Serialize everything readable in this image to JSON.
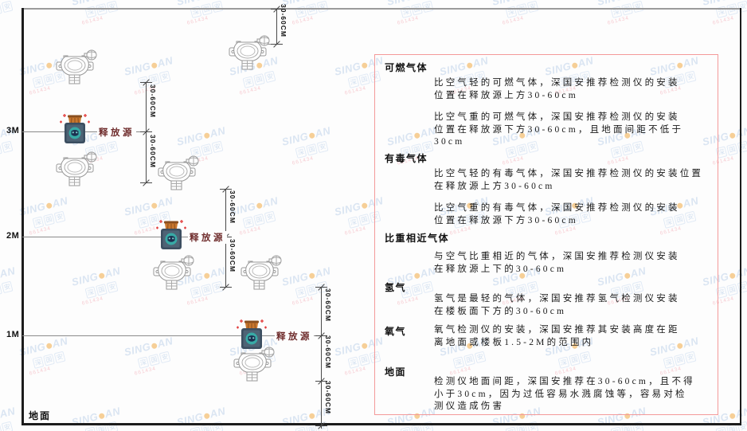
{
  "diagram": {
    "axis_levels": [
      "3M",
      "2M",
      "1M"
    ],
    "ground_label": "地面",
    "dimension_label": "30-60CM",
    "release_source_label": "释放源"
  },
  "panel": {
    "sections": [
      {
        "heading": "可燃气体",
        "paragraphs": [
          [
            "比空气轻的可燃气体，深国安推荐检测仪的安装",
            "位置在释放源上方30-60cm"
          ],
          [
            "比空气重的可燃气体，深国安推荐检测仪的安装",
            "位置在释放源下方30-60cm，且地面间距不低于",
            "30cm"
          ]
        ]
      },
      {
        "heading": "有毒气体",
        "paragraphs": [
          [
            "比空气轻的有毒气体，深国安推荐检测仪的安装位置",
            "在释放源上方30-60cm"
          ],
          [
            "比空气重的有毒气体，深国安推荐检测仪的安装",
            "位置在释放源下方30-60cm"
          ]
        ]
      },
      {
        "heading": "比重相近气体",
        "paragraphs": [
          [
            "与空气比重相近的气体，深国安推荐检测仪安装",
            "在释放源上下的30-60cm"
          ]
        ]
      },
      {
        "heading": "氢气",
        "paragraphs": [
          [
            "氢气是最轻的气体，深国安推荐氢气检测仪安装",
            "在楼板面下方的30-60cm"
          ]
        ]
      },
      {
        "heading": "氧气",
        "paragraphs": [
          [
            "氧气检测仪的安装，深国安推荐其安装高度在距",
            "离地面或楼板1.5-2M的范围内"
          ]
        ]
      },
      {
        "heading": "地面",
        "paragraphs": [
          [
            "检测仪地面间距，深国安推荐在30-60cm，且不得",
            "小于30cm，因为过低容易水溅腐蚀等，容易对检",
            "测仪造成伤害"
          ]
        ]
      }
    ]
  },
  "watermark": {
    "brand_left": "SING",
    "brand_right": "AN",
    "cjk": [
      "深",
      "国",
      "安"
    ],
    "code": "661434"
  },
  "colors": {
    "panel_border": "#f49a9a",
    "source_teal": "#38aaa6",
    "source_body": "#3c4e60",
    "cap_orange": "#c9772e",
    "watermark_blue": "#b9cee9",
    "watermark_orange": "#f0a233",
    "accent_red": "#e23b3b",
    "detector_stroke": "#999999"
  }
}
